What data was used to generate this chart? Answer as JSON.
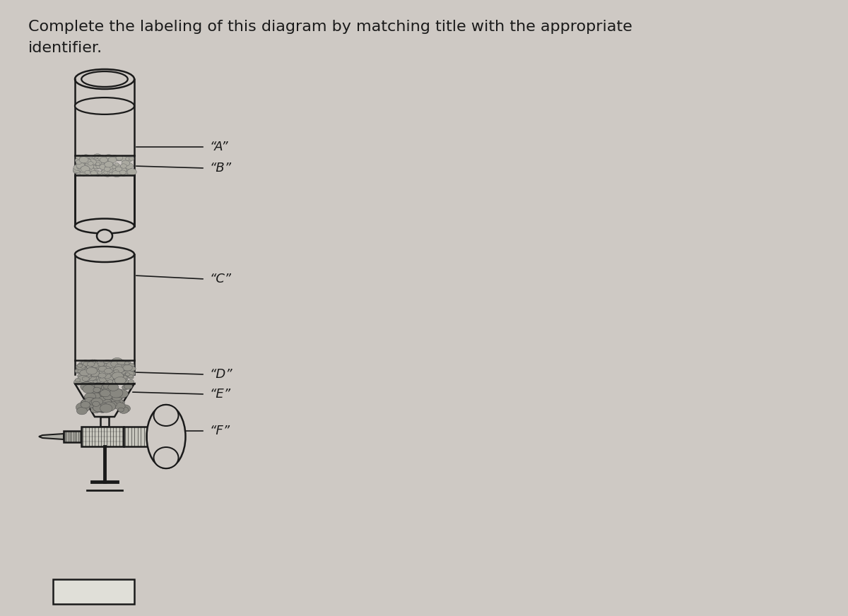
{
  "title_line1": "Complete the labeling of this diagram by matching title with the appropriate",
  "title_line2": "identifier.",
  "labels": [
    "“A”",
    "“B”",
    "“C”",
    "“D”",
    "“E”",
    "“F”"
  ],
  "bg_color": "#cec9c4",
  "text_color": "#1a1a1a",
  "diagram_color": "#1a1a1a",
  "title_fontsize": 16,
  "label_fontsize": 13
}
